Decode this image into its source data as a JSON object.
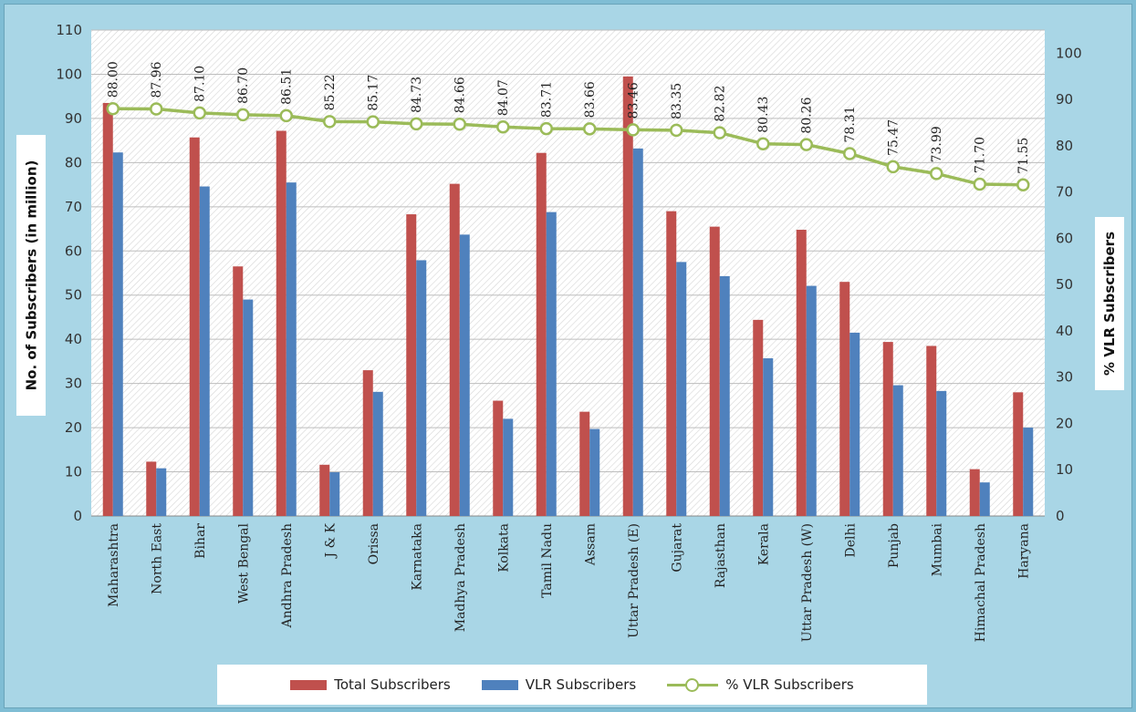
{
  "chart_data": {
    "type": "bar",
    "categories": [
      "Maharashtra",
      "North East",
      "Bihar",
      "West Bengal",
      "Andhra Pradesh",
      "J & K",
      "Orissa",
      "Karnataka",
      "Madhya Pradesh",
      "Kolkata",
      "Tamil Nadu",
      "Assam",
      "Uttar Pradesh (E)",
      "Gujarat",
      "Rajasthan",
      "Kerala",
      "Uttar Pradesh (W)",
      "Delhi",
      "Punjab",
      "Mumbai",
      "Himachal Pradesh",
      "Haryana"
    ],
    "series": [
      {
        "name": "Total Subscribers",
        "type": "bar",
        "axis": "left",
        "color": "#c0504d",
        "values": [
          93.5,
          12.3,
          85.7,
          56.5,
          87.2,
          11.6,
          33.0,
          68.3,
          75.2,
          26.1,
          82.2,
          23.6,
          99.5,
          69.0,
          65.5,
          44.4,
          64.8,
          53.0,
          39.4,
          38.5,
          10.6,
          28.0
        ]
      },
      {
        "name": "VLR Subscribers",
        "type": "bar",
        "axis": "left",
        "color": "#4f81bd",
        "values": [
          82.3,
          10.8,
          74.6,
          49.0,
          75.5,
          9.9,
          28.1,
          57.9,
          63.7,
          22.0,
          68.8,
          19.7,
          83.2,
          57.5,
          54.3,
          35.7,
          52.1,
          41.5,
          29.6,
          28.3,
          7.6,
          20.0
        ]
      },
      {
        "name": "% VLR Subscribers",
        "type": "line",
        "axis": "right",
        "color": "#9bbb59",
        "values": [
          88.0,
          87.96,
          87.1,
          86.7,
          86.51,
          85.22,
          85.17,
          84.73,
          84.66,
          84.07,
          83.71,
          83.66,
          83.46,
          83.35,
          82.82,
          80.43,
          80.26,
          78.31,
          75.47,
          73.99,
          71.7,
          71.55
        ],
        "labels": [
          "88.00",
          "87.96",
          "87.10",
          "86.70",
          "86.51",
          "85.22",
          "85.17",
          "84.73",
          "84.66",
          "84.07",
          "83.71",
          "83.66",
          "83.46",
          "83.35",
          "82.82",
          "80.43",
          "80.26",
          "78.31",
          "75.47",
          "73.99",
          "71.70",
          "71.55"
        ]
      }
    ],
    "ylabel": "No. of Subscribers (in million)",
    "y2label": "% VLR Subscribers",
    "ylim": [
      0,
      110
    ],
    "y2lim": [
      0,
      105
    ],
    "yticks": [
      "0",
      "10",
      "20",
      "30",
      "40",
      "50",
      "60",
      "70",
      "80",
      "90",
      "100",
      "110"
    ],
    "y2ticks": [
      "0",
      "10",
      "20",
      "30",
      "40",
      "50",
      "60",
      "70",
      "80",
      "90",
      "100"
    ],
    "legend_position": "bottom",
    "grid": true
  }
}
